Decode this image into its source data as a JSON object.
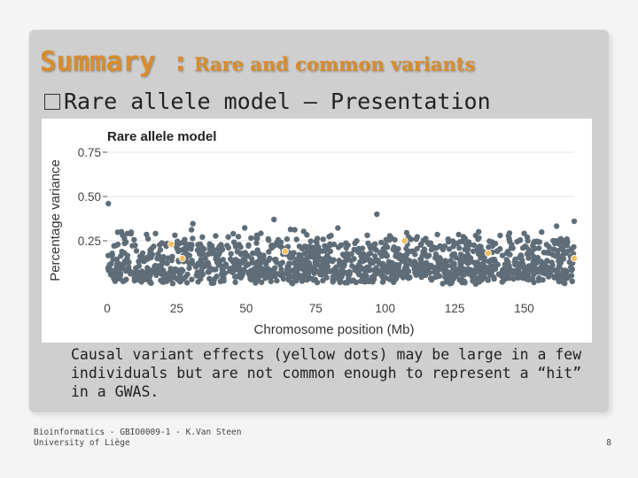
{
  "slide": {
    "title_main": "Summary :",
    "title_sub": "Rare and common variants",
    "bullet_marker": "□",
    "bullet": "Rare allele model – Presentation",
    "caption": "Causal variant effects (yellow dots) may be large in a few individuals but are not common enough to represent a “hit” in a GWAS.",
    "footer": {
      "line1": "Bioinformatics - GBIO0009-1 - K.Van Steen",
      "line2": "University of Liège",
      "page": "8"
    }
  },
  "colors": {
    "title": "#d88c2c",
    "points": "#5f6d78",
    "causal": "#f2c063",
    "panel": "#cfcfcf"
  },
  "chart_data": {
    "type": "scatter",
    "title": "Rare allele model",
    "xlabel": "Chromosome position (Mb)",
    "ylabel": "Percentage variance",
    "xlim": [
      0,
      168
    ],
    "ylim": [
      0.0,
      0.76
    ],
    "x_ticks": [
      "0",
      "25",
      "50",
      "75",
      "100",
      "125",
      "150"
    ],
    "x_tick_values": [
      0,
      25,
      50,
      75,
      100,
      125,
      150
    ],
    "y_ticks": [
      "0.75",
      "0.50",
      "0.25"
    ],
    "y_tick_values": [
      0.75,
      0.5,
      0.25
    ],
    "series": [
      {
        "name": "variants",
        "count": 1400,
        "description_range": [
          0.0,
          0.38
        ],
        "max_values": [
          0.46,
          0.37,
          0.4,
          0.36
        ]
      },
      {
        "name": "causal variants",
        "points": [
          {
            "x": 23,
            "y": 0.23
          },
          {
            "x": 27,
            "y": 0.15
          },
          {
            "x": 64,
            "y": 0.19
          },
          {
            "x": 107,
            "y": 0.25
          },
          {
            "x": 137,
            "y": 0.18
          },
          {
            "x": 168,
            "y": 0.15
          }
        ]
      }
    ]
  }
}
